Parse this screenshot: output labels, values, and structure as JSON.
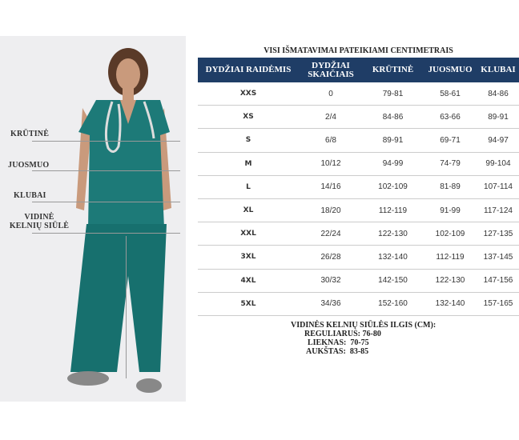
{
  "figure": {
    "labels": [
      "KRŪTINĖ",
      "JUOSMUO",
      "KLUBAI",
      "VIDINĖ KELNIŲ SIŪLĖ"
    ],
    "scrubs_color": "#1d7a78"
  },
  "chart_title": "VISI IŠMATAVIMAI PATEIKIAMI CENTIMETRAIS",
  "header_color": "#1f3d66",
  "table": {
    "headers": [
      "DYDŽIAI RAIDĖMIS",
      "DYDŽIAI SKAIČIAIS",
      "KRŪTINĖ",
      "JUOSMUO",
      "KLUBAI"
    ],
    "rows": [
      [
        "XXS",
        "0",
        "79-81",
        "58-61",
        "84-86"
      ],
      [
        "XS",
        "2/4",
        "84-86",
        "63-66",
        "89-91"
      ],
      [
        "S",
        "6/8",
        "89-91",
        "69-71",
        "94-97"
      ],
      [
        "M",
        "10/12",
        "94-99",
        "74-79",
        "99-104"
      ],
      [
        "L",
        "14/16",
        "102-109",
        "81-89",
        "107-114"
      ],
      [
        "XL",
        "18/20",
        "112-119",
        "91-99",
        "117-124"
      ],
      [
        "XXL",
        "22/24",
        "122-130",
        "102-109",
        "127-135"
      ],
      [
        "3XL",
        "26/28",
        "132-140",
        "112-119",
        "137-145"
      ],
      [
        "4XL",
        "30/32",
        "142-150",
        "122-130",
        "147-156"
      ],
      [
        "5XL",
        "34/36",
        "152-160",
        "132-140",
        "157-165"
      ]
    ]
  },
  "inseam": {
    "title": "VIDINĖS KELNIŲ SIŪLĖS ILGIS (CM):",
    "lines": [
      "REGULIARUS: 76-80",
      "LIEKNAS:  70-75",
      "AUKŠTAS:  83-85"
    ]
  }
}
